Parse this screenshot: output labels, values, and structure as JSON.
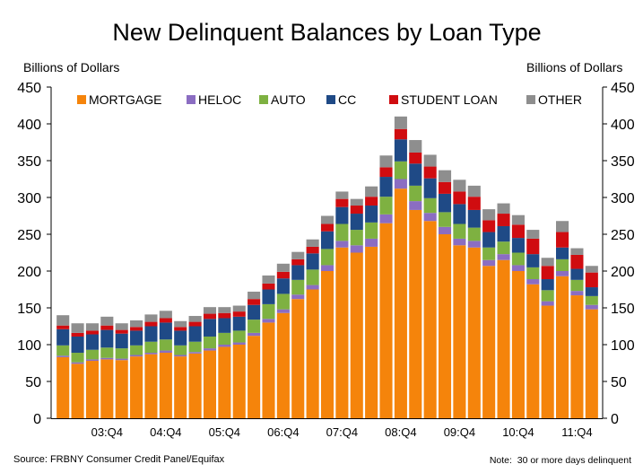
{
  "chart_data": {
    "type": "bar",
    "stacked": true,
    "title": "New Delinquent Balances by Loan Type",
    "ylabel": "Billions of Dollars",
    "y2label": "Billions of Dollars",
    "xlabel": "",
    "ylim": [
      0,
      450
    ],
    "yticks": [
      0,
      50,
      100,
      150,
      200,
      250,
      300,
      350,
      400,
      450
    ],
    "grid": false,
    "legend_position": "top",
    "categories": [
      "",
      "",
      "",
      "03:Q4",
      "",
      "",
      "",
      "04:Q4",
      "",
      "",
      "",
      "05:Q4",
      "",
      "",
      "",
      "06:Q4",
      "",
      "",
      "",
      "07:Q4",
      "",
      "",
      "",
      "08:Q4",
      "",
      "",
      "",
      "09:Q4",
      "",
      "",
      "",
      "10:Q4",
      "",
      "",
      "",
      "11:Q4",
      ""
    ],
    "series": [
      {
        "name": "MORTGAGE",
        "color": "#F5840B",
        "values": [
          83,
          74,
          78,
          80,
          79,
          84,
          87,
          89,
          84,
          88,
          92,
          97,
          100,
          112,
          130,
          143,
          162,
          175,
          200,
          232,
          225,
          233,
          265,
          312,
          283,
          268,
          250,
          235,
          232,
          207,
          215,
          200,
          182,
          153,
          193,
          167,
          148
        ]
      },
      {
        "name": "HELOC",
        "color": "#8B6DC2",
        "values": [
          2,
          2,
          2,
          2,
          2,
          2,
          2,
          3,
          2,
          2,
          3,
          3,
          3,
          4,
          5,
          5,
          6,
          6,
          8,
          9,
          10,
          11,
          12,
          13,
          12,
          11,
          10,
          9,
          9,
          8,
          8,
          8,
          7,
          6,
          7,
          6,
          6
        ]
      },
      {
        "name": "AUTO",
        "color": "#7EB141",
        "values": [
          14,
          13,
          13,
          14,
          14,
          13,
          15,
          15,
          13,
          14,
          16,
          16,
          16,
          18,
          20,
          21,
          20,
          21,
          22,
          23,
          21,
          22,
          24,
          24,
          21,
          20,
          20,
          20,
          18,
          17,
          17,
          17,
          16,
          15,
          16,
          15,
          12
        ]
      },
      {
        "name": "CC",
        "color": "#1F4A86",
        "values": [
          22,
          22,
          21,
          24,
          20,
          20,
          21,
          23,
          20,
          21,
          24,
          20,
          19,
          20,
          20,
          21,
          20,
          22,
          24,
          23,
          22,
          23,
          27,
          30,
          30,
          27,
          25,
          27,
          24,
          21,
          21,
          20,
          18,
          15,
          16,
          15,
          12
        ]
      },
      {
        "name": "STUDENT LOAN",
        "color": "#D00C10",
        "values": [
          5,
          5,
          5,
          6,
          5,
          5,
          6,
          6,
          5,
          6,
          7,
          7,
          7,
          8,
          8,
          9,
          8,
          9,
          10,
          11,
          11,
          12,
          13,
          14,
          15,
          16,
          16,
          17,
          18,
          16,
          17,
          18,
          21,
          18,
          21,
          19,
          20
        ]
      },
      {
        "name": "OTHER",
        "color": "#8E8E8E",
        "values": [
          14,
          13,
          10,
          12,
          9,
          9,
          10,
          10,
          8,
          8,
          9,
          8,
          8,
          10,
          11,
          11,
          10,
          10,
          11,
          10,
          9,
          14,
          16,
          17,
          17,
          16,
          16,
          16,
          15,
          15,
          14,
          13,
          12,
          11,
          15,
          9,
          9
        ]
      }
    ]
  },
  "footer": {
    "source": "Source: FRBNY Consumer Credit Panel/Equifax",
    "note": "Note:  30 or more days delinquent"
  }
}
